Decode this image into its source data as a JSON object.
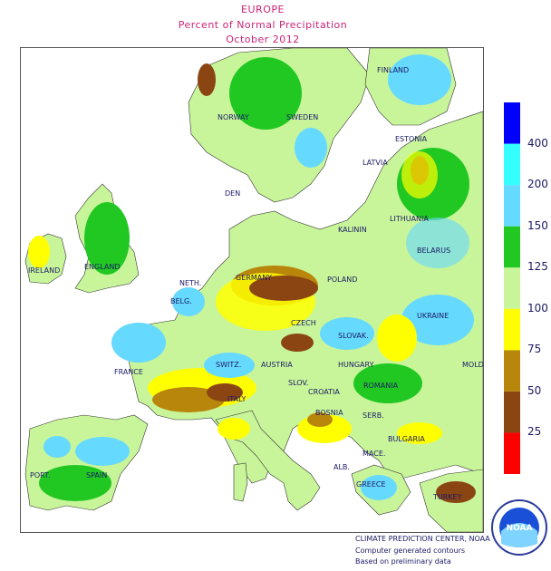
{
  "header": {
    "region": "EUROPE",
    "metric": "Percent of Normal Precipitation",
    "period": "October 2012"
  },
  "legend": {
    "colors": [
      "#ff0000",
      "#8b4513",
      "#b8860b",
      "#ffff00",
      "#c8f59a",
      "#22c822",
      "#66d9ff",
      "#33ffff",
      "#0000ff"
    ],
    "levels": [
      "25",
      "50",
      "75",
      "100",
      "125",
      "150",
      "200",
      "400"
    ]
  },
  "map": {
    "base_color": "#c8f59a",
    "water_color": "#ffffff",
    "labels": [
      {
        "text": "FINLAND"
      },
      {
        "text": "NORWAY"
      },
      {
        "text": "SWEDEN"
      },
      {
        "text": "ESTONIA"
      },
      {
        "text": "LATVIA"
      },
      {
        "text": "LITHUANIA"
      },
      {
        "text": "DEN"
      },
      {
        "text": "IRELAND"
      },
      {
        "text": "ENGLAND"
      },
      {
        "text": "KALININ"
      },
      {
        "text": "BELARUS"
      },
      {
        "text": "GERMANY"
      },
      {
        "text": "POLAND"
      },
      {
        "text": "NETH."
      },
      {
        "text": "BELG."
      },
      {
        "text": "CZECH"
      },
      {
        "text": "UKRAINE"
      },
      {
        "text": "SLOVAK."
      },
      {
        "text": "FRANCE"
      },
      {
        "text": "AUSTRIA"
      },
      {
        "text": "HUNGARY"
      },
      {
        "text": "SWITZ."
      },
      {
        "text": "MOLD."
      },
      {
        "text": "ROMANIA"
      },
      {
        "text": "SLOV."
      },
      {
        "text": "CROATIA"
      },
      {
        "text": "ITALY"
      },
      {
        "text": "BOSNIA"
      },
      {
        "text": "SERB."
      },
      {
        "text": "BULGARIA"
      },
      {
        "text": "MACE."
      },
      {
        "text": "ALB."
      },
      {
        "text": "PORT."
      },
      {
        "text": "SPAIN"
      },
      {
        "text": "GREECE"
      },
      {
        "text": "TURKEY"
      }
    ]
  },
  "footer": {
    "line1": "CLIMATE PREDICTION CENTER, NOAA",
    "line2": "Computer generated contours",
    "line3": "Based on preliminary data"
  },
  "logo": {
    "text": "NOAA"
  }
}
